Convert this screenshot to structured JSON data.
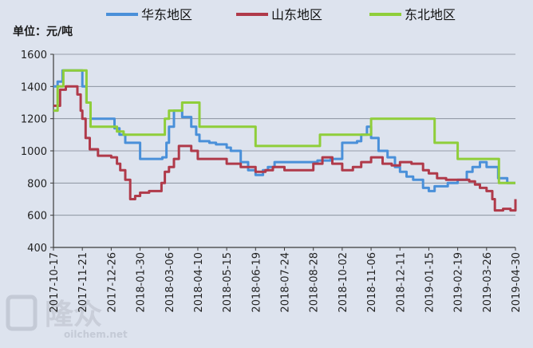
{
  "chart_data": {
    "type": "line",
    "unit_label": "单位：元/吨",
    "watermark": {
      "brand": "隆众",
      "url": "oilchem.net"
    },
    "x_ticks": [
      "2017-10-17",
      "2017-11-21",
      "2017-12-26",
      "2018-01-30",
      "2018-03-06",
      "2018-04-10",
      "2018-05-15",
      "2018-06-19",
      "2018-07-24",
      "2018-08-28",
      "2018-10-02",
      "2018-11-06",
      "2018-12-11",
      "2019-01-15",
      "2019-02-19",
      "2019-03-26",
      "2019-04-30"
    ],
    "xlim": [
      "2017-10-17",
      "2019-04-30"
    ],
    "ylim": [
      400,
      1600
    ],
    "y_ticks": [
      400,
      600,
      800,
      1000,
      1200,
      1400,
      1600
    ],
    "grid": "horizontal",
    "legend_position": "top",
    "colors": {
      "华东地区": "#4a90d9",
      "山东地区": "#b03a4a",
      "东北地区": "#8fce3a",
      "grid": "#7f8794",
      "axis": "#3b3b3b",
      "background": "#dde3ee"
    },
    "series": [
      {
        "name": "华东地区",
        "x": [
          "2017-10-17",
          "2017-10-22",
          "2017-10-28",
          "2017-11-04",
          "2017-11-17",
          "2017-11-21",
          "2017-11-26",
          "2017-12-01",
          "2017-12-26",
          "2017-12-30",
          "2018-01-05",
          "2018-01-12",
          "2018-01-30",
          "2018-02-13",
          "2018-02-26",
          "2018-03-03",
          "2018-03-06",
          "2018-03-12",
          "2018-03-22",
          "2018-04-02",
          "2018-04-08",
          "2018-04-12",
          "2018-04-24",
          "2018-05-02",
          "2018-05-15",
          "2018-05-20",
          "2018-06-01",
          "2018-06-10",
          "2018-06-19",
          "2018-06-28",
          "2018-07-04",
          "2018-07-12",
          "2018-07-24",
          "2018-08-10",
          "2018-08-22",
          "2018-09-02",
          "2018-09-10",
          "2018-09-18",
          "2018-10-02",
          "2018-10-20",
          "2018-10-25",
          "2018-11-01",
          "2018-11-06",
          "2018-11-15",
          "2018-11-26",
          "2018-12-05",
          "2018-12-11",
          "2018-12-19",
          "2018-12-27",
          "2019-01-08",
          "2019-01-15",
          "2019-01-22",
          "2019-02-07",
          "2019-02-19",
          "2019-03-02",
          "2019-03-09",
          "2019-03-18",
          "2019-03-26",
          "2019-04-09",
          "2019-04-17",
          "2019-04-20",
          "2019-04-30"
        ],
        "values": [
          1400,
          1430,
          1500,
          1500,
          1500,
          1400,
          1300,
          1200,
          1200,
          1140,
          1100,
          1050,
          950,
          950,
          960,
          1050,
          1150,
          1250,
          1210,
          1150,
          1100,
          1060,
          1050,
          1040,
          1020,
          1000,
          930,
          880,
          850,
          880,
          900,
          930,
          930,
          930,
          930,
          940,
          940,
          950,
          1050,
          1060,
          1100,
          1150,
          1080,
          1000,
          960,
          900,
          870,
          840,
          820,
          770,
          750,
          780,
          800,
          820,
          870,
          900,
          930,
          900,
          830,
          830,
          800,
          800
        ]
      },
      {
        "name": "山东地区",
        "x": [
          "2017-10-17",
          "2017-10-25",
          "2017-11-01",
          "2017-11-10",
          "2017-11-15",
          "2017-11-19",
          "2017-11-21",
          "2017-11-25",
          "2017-11-30",
          "2017-12-10",
          "2017-12-26",
          "2018-01-02",
          "2018-01-06",
          "2018-01-12",
          "2018-01-18",
          "2018-01-24",
          "2018-01-30",
          "2018-02-10",
          "2018-02-20",
          "2018-02-25",
          "2018-03-01",
          "2018-03-06",
          "2018-03-12",
          "2018-03-18",
          "2018-03-26",
          "2018-04-02",
          "2018-04-10",
          "2018-05-08",
          "2018-05-15",
          "2018-06-01",
          "2018-06-19",
          "2018-07-01",
          "2018-07-10",
          "2018-07-24",
          "2018-08-15",
          "2018-08-28",
          "2018-09-08",
          "2018-09-20",
          "2018-10-02",
          "2018-10-15",
          "2018-10-25",
          "2018-11-06",
          "2018-11-20",
          "2018-12-01",
          "2018-12-11",
          "2018-12-25",
          "2019-01-08",
          "2019-01-15",
          "2019-01-25",
          "2019-02-05",
          "2019-02-19",
          "2019-03-05",
          "2019-03-12",
          "2019-03-18",
          "2019-03-26",
          "2019-04-02",
          "2019-04-05",
          "2019-04-15",
          "2019-04-24",
          "2019-04-30"
        ],
        "values": [
          1280,
          1380,
          1400,
          1400,
          1350,
          1250,
          1200,
          1080,
          1010,
          970,
          960,
          920,
          880,
          820,
          700,
          720,
          740,
          750,
          750,
          800,
          870,
          900,
          950,
          1030,
          1030,
          1000,
          950,
          950,
          920,
          900,
          870,
          880,
          900,
          880,
          880,
          920,
          960,
          920,
          880,
          900,
          930,
          960,
          920,
          910,
          930,
          920,
          880,
          860,
          830,
          820,
          820,
          810,
          790,
          770,
          750,
          700,
          630,
          640,
          630,
          700
        ]
      },
      {
        "name": "东北地区",
        "x": [
          "2017-10-17",
          "2017-10-22",
          "2017-10-29",
          "2017-11-04",
          "2017-11-21",
          "2017-11-26",
          "2017-12-01",
          "2017-12-26",
          "2018-01-02",
          "2018-01-10",
          "2018-02-14",
          "2018-03-01",
          "2018-03-06",
          "2018-03-22",
          "2018-04-08",
          "2018-04-12",
          "2018-05-01",
          "2018-05-15",
          "2018-06-19",
          "2018-08-28",
          "2018-09-05",
          "2018-10-02",
          "2018-10-25",
          "2018-11-06",
          "2018-12-11",
          "2019-01-15",
          "2019-01-22",
          "2019-02-15",
          "2019-02-19",
          "2019-02-25",
          "2019-03-26",
          "2019-04-05",
          "2019-04-10",
          "2019-04-30"
        ],
        "values": [
          1250,
          1400,
          1500,
          1500,
          1500,
          1300,
          1150,
          1150,
          1120,
          1100,
          1100,
          1200,
          1250,
          1300,
          1300,
          1150,
          1150,
          1150,
          1030,
          1030,
          1100,
          1100,
          1100,
          1200,
          1200,
          1200,
          1050,
          1050,
          950,
          950,
          950,
          950,
          800,
          800
        ]
      }
    ]
  }
}
